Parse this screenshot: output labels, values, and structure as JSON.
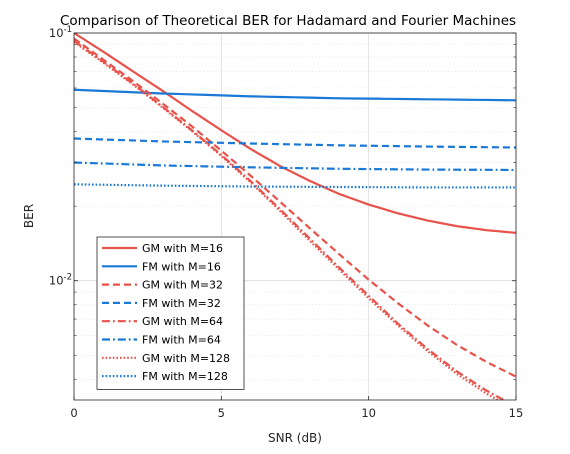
{
  "chart_data": {
    "type": "line",
    "title": "Comparison of Theoretical BER for Hadamard and Fourier Machines",
    "xlabel": "SNR (dB)",
    "ylabel": "BER",
    "xlim": [
      0,
      15
    ],
    "ylim": [
      0.0033,
      0.1
    ],
    "yscale": "log",
    "xticks": [
      0,
      5,
      10,
      15
    ],
    "xtick_labels": [
      "0",
      "5",
      "10",
      "15"
    ],
    "yticks": [
      0.01,
      0.1
    ],
    "ytick_labels": [
      {
        "base": "10",
        "exp": "-2"
      },
      {
        "base": "10",
        "exp": "-1"
      }
    ],
    "grid": true,
    "legend_position": "lower-left",
    "series": [
      {
        "name": "GM with M=16",
        "color": "#e8524a",
        "dash": "solid",
        "x": [
          0,
          1,
          2,
          3,
          4,
          5,
          6,
          7,
          8,
          9,
          10,
          11,
          12,
          13,
          14,
          15
        ],
        "y": [
          0.1,
          0.084,
          0.07,
          0.0585,
          0.0485,
          0.0405,
          0.034,
          0.029,
          0.0253,
          0.0224,
          0.0203,
          0.0187,
          0.0175,
          0.0166,
          0.016,
          0.0156
        ]
      },
      {
        "name": "FM with M=16",
        "color": "#1a78d6",
        "dash": "solid",
        "x": [
          0,
          3,
          6,
          9,
          12,
          15
        ],
        "y": [
          0.059,
          0.057,
          0.0555,
          0.0545,
          0.054,
          0.0535
        ]
      },
      {
        "name": "GM with M=32",
        "color": "#e8524a",
        "dash": "dashed",
        "x": [
          0,
          1,
          2,
          3,
          4,
          5,
          6,
          7,
          8,
          9,
          10,
          11,
          12,
          13,
          14,
          15
        ],
        "y": [
          0.095,
          0.078,
          0.064,
          0.052,
          0.042,
          0.0335,
          0.0265,
          0.0208,
          0.0163,
          0.0128,
          0.0101,
          0.0081,
          0.0066,
          0.0055,
          0.0047,
          0.0041
        ]
      },
      {
        "name": "FM with M=32",
        "color": "#1a78d6",
        "dash": "dashed",
        "x": [
          0,
          3,
          6,
          9,
          12,
          15
        ],
        "y": [
          0.0375,
          0.0365,
          0.0358,
          0.0352,
          0.0348,
          0.0345
        ]
      },
      {
        "name": "GM with M=64",
        "color": "#e8524a",
        "dash": "dashdot",
        "x": [
          0,
          1,
          2,
          3,
          4,
          5,
          6,
          7,
          8,
          9,
          10,
          11,
          12,
          13,
          14,
          15
        ],
        "y": [
          0.093,
          0.0765,
          0.0625,
          0.0505,
          0.0405,
          0.0322,
          0.0252,
          0.0194,
          0.0148,
          0.0113,
          0.0087,
          0.0067,
          0.0053,
          0.0043,
          0.0036,
          0.0031
        ]
      },
      {
        "name": "FM with M=64",
        "color": "#1a78d6",
        "dash": "dashdot",
        "x": [
          0,
          3,
          6,
          9,
          12,
          15
        ],
        "y": [
          0.03,
          0.0292,
          0.0287,
          0.0283,
          0.0281,
          0.028
        ]
      },
      {
        "name": "GM with M=128",
        "color": "#e8524a",
        "dash": "dotted",
        "x": [
          0,
          1,
          2,
          3,
          4,
          5,
          6,
          7,
          8,
          9,
          10,
          11,
          12,
          13,
          14,
          15
        ],
        "y": [
          0.092,
          0.0758,
          0.062,
          0.0501,
          0.0402,
          0.0319,
          0.0249,
          0.0191,
          0.0145,
          0.0111,
          0.0085,
          0.0066,
          0.0052,
          0.0042,
          0.0035,
          0.003
        ]
      },
      {
        "name": "FM with M=128",
        "color": "#1a78d6",
        "dash": "dotted",
        "x": [
          0,
          3,
          6,
          9,
          12,
          15
        ],
        "y": [
          0.0245,
          0.0242,
          0.024,
          0.0239,
          0.0238,
          0.0238
        ]
      }
    ]
  }
}
